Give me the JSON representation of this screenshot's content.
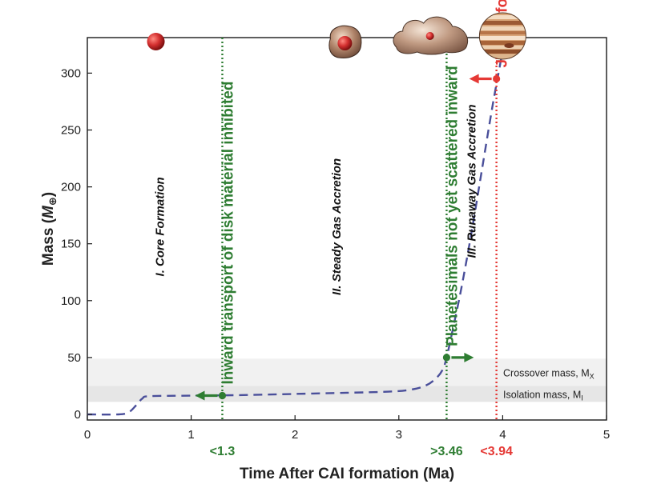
{
  "chart_data": {
    "type": "line",
    "title": "",
    "xlabel": "Time After CAI formation (Ma)",
    "ylabel_main": "Mass (",
    "ylabel_symbol": "M",
    "ylabel_sub": "⊕",
    "ylabel_close": ")",
    "xlim": [
      0,
      5
    ],
    "ylim": [
      0,
      330
    ],
    "x_ticks": [
      0,
      1,
      2,
      3,
      4,
      5
    ],
    "y_ticks": [
      0,
      50,
      100,
      150,
      200,
      250,
      300
    ],
    "grid": false,
    "series": [
      {
        "style": "dashed",
        "color": "#4a4f9a",
        "x": [
          0.0,
          0.3,
          0.4,
          0.47,
          0.53,
          0.6,
          1.0,
          1.5,
          2.0,
          2.5,
          2.9,
          3.1,
          3.25,
          3.35,
          3.42,
          3.46,
          3.52,
          3.6,
          3.7,
          3.8,
          3.9,
          3.97,
          4.02
        ],
        "y": [
          0,
          0,
          2,
          8,
          14,
          16,
          16.5,
          17,
          18,
          19,
          20,
          21.5,
          25,
          31,
          39,
          50,
          75,
          110,
          160,
          215,
          270,
          305,
          330
        ]
      }
    ],
    "bands": [
      {
        "y0": 11,
        "y1": 25,
        "color": "#e6e6e6",
        "label_main": "Isolation mass, M",
        "label_sub": "I"
      },
      {
        "y0": 25,
        "y1": 49,
        "color": "#f1f1f1",
        "label_main": "Crossover mass, M",
        "label_sub": "X"
      }
    ],
    "phases": [
      {
        "x": 0.7,
        "y": 165,
        "label": "I. Core Formation"
      },
      {
        "x": 2.4,
        "y": 165,
        "label": "II. Steady Gas Accretion"
      },
      {
        "x": 3.7,
        "y": 205,
        "label": "III. Runaway Gas Accretion"
      }
    ],
    "events": [
      {
        "x": 1.3,
        "color": "#2e7d32",
        "label": "Inward transport of disk material inhibited",
        "age_label": "<1.3",
        "marker_y": 16.5,
        "arrow_direction": "left",
        "style": "green"
      },
      {
        "x": 3.46,
        "color": "#2e7d32",
        "label": "Planetesimals not yet scattered inward",
        "age_label": ">3.46",
        "marker_y": 50,
        "arrow_direction": "right",
        "style": "green"
      },
      {
        "x": 3.94,
        "color": "#e53935",
        "label": "Jupiter formed",
        "age_label": "<3.94",
        "marker_y": 295,
        "arrow_direction": "left",
        "style": "red"
      }
    ],
    "illustrations": [
      {
        "icon": "planet-core-icon",
        "x": 0.66
      },
      {
        "icon": "core-with-envelope-icon",
        "x": 2.48
      },
      {
        "icon": "gas-cloud-core-icon",
        "x": 3.3
      },
      {
        "icon": "jupiter-icon",
        "x": 4.0
      }
    ]
  }
}
